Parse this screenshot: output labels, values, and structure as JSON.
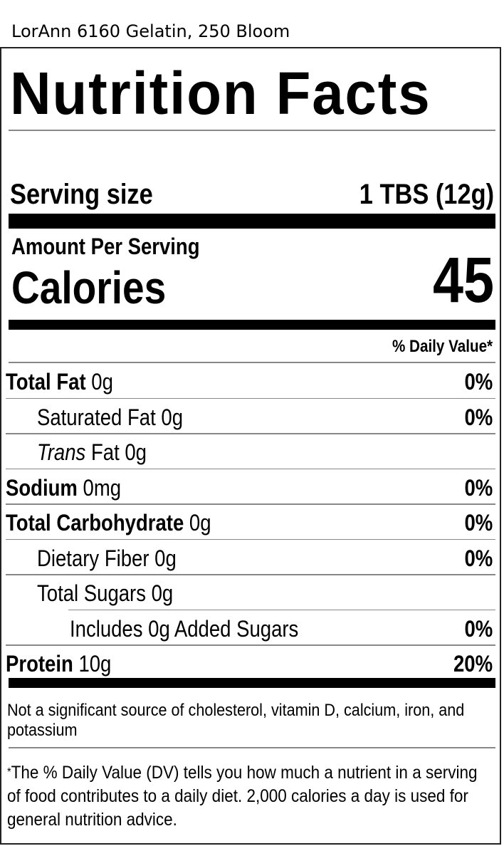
{
  "product_title": "LorAnn 6160 Gelatin, 250 Bloom",
  "label": {
    "heading": "Nutrition Facts",
    "serving_size_label": "Serving size",
    "serving_size_value": "1 TBS (12g)",
    "amount_per_serving": "Amount Per Serving",
    "calories_label": "Calories",
    "calories_value": "45",
    "daily_value_header": "% Daily Value*",
    "rows": [
      {
        "name": "Total Fat",
        "amount": "0g",
        "dv": "0%",
        "bold": true,
        "indent": 0
      },
      {
        "name": "Saturated Fat",
        "amount": "0g",
        "dv": "0%",
        "bold": false,
        "indent": 1
      },
      {
        "name": "Trans",
        "name_suffix": "Fat",
        "amount": "0g",
        "dv": "",
        "bold": false,
        "indent": 1,
        "italic_prefix": true
      },
      {
        "name": "Sodium",
        "amount": "0mg",
        "dv": "0%",
        "bold": true,
        "indent": 0
      },
      {
        "name": "Total Carbohydrate",
        "amount": "0g",
        "dv": "0%",
        "bold": true,
        "indent": 0
      },
      {
        "name": "Dietary Fiber",
        "amount": "0g",
        "dv": "0%",
        "bold": false,
        "indent": 1
      },
      {
        "name": "Total Sugars",
        "amount": "0g",
        "dv": "",
        "bold": false,
        "indent": 1
      },
      {
        "name": "Includes 0g Added Sugars",
        "amount": "",
        "dv": "0%",
        "bold": false,
        "indent": 2
      },
      {
        "name": "Protein",
        "amount": "10g",
        "dv": "20%",
        "bold": true,
        "indent": 0
      }
    ],
    "not_significant": "Not a significant source of cholesterol, vitamin D, calcium, iron, and potassium",
    "footnote_marker": "*",
    "footnote": "The % Daily Value (DV) tells you how much a nutrient in a serving of food contributes to a daily diet. 2,000 calories a day is used for general nutrition advice."
  }
}
